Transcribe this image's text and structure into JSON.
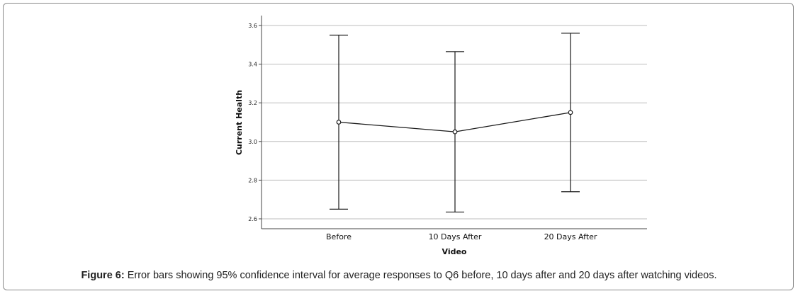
{
  "figure": {
    "caption_label": "Figure 6:",
    "caption_text": " Error bars showing 95% confidence interval for average responses to Q6 before, 10 days after and 20 days after watching videos."
  },
  "chart_data": {
    "type": "line",
    "title": "",
    "xlabel": "Video",
    "ylabel": "Current Health",
    "categories": [
      "Before",
      "10 Days After",
      "20 Days After"
    ],
    "series": [
      {
        "values": [
          3.1,
          3.05,
          3.15
        ],
        "ci_lower": [
          2.65,
          2.635,
          2.74
        ],
        "ci_upper": [
          3.55,
          3.465,
          3.56
        ]
      }
    ],
    "ylim": [
      2.55,
      3.66
    ],
    "yticks": [
      "2.6",
      "2.8",
      "3.0",
      "3.2",
      "3.4",
      "3.6"
    ],
    "grid": "horizontal",
    "legend": "none",
    "colors": {
      "line": "#1a1a1a",
      "grid": "#bdbdbd",
      "axis": "#444444"
    }
  }
}
